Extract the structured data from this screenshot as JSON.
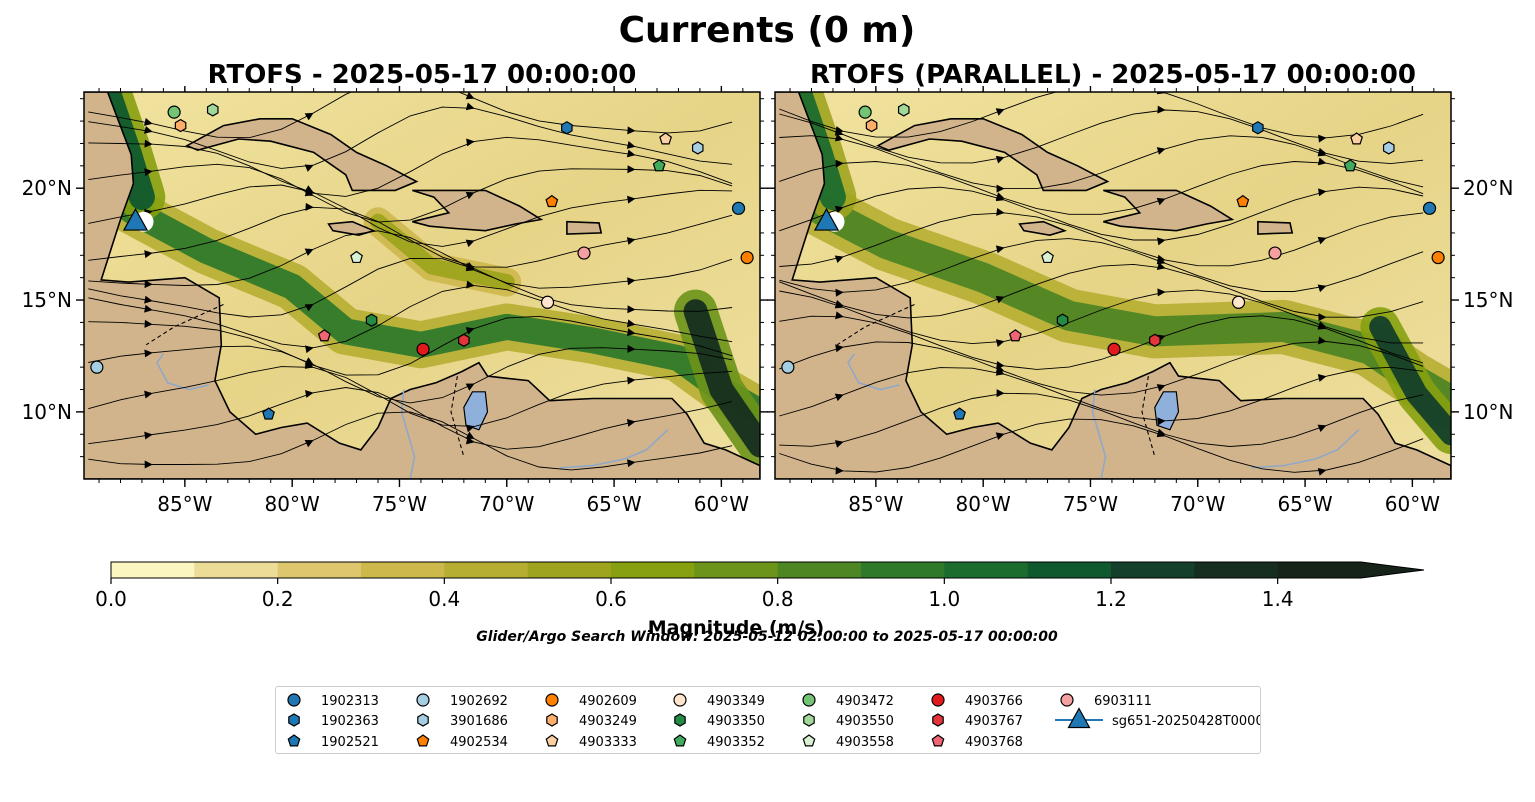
{
  "suptitle": "Currents (0 m)",
  "colors": {
    "land": "#d2b48c",
    "water_body": "#8fb0da",
    "river": "#8fa8c8",
    "streamline": "#000000"
  },
  "chart_data": [
    {
      "type": "heatmap",
      "title": "RTOFS - 2025-05-17 00:00:00",
      "xlim": [
        -89.7,
        -58.2
      ],
      "ylim": [
        7.0,
        24.3
      ],
      "x_ticks": [
        -85,
        -80,
        -75,
        -70,
        -65,
        -60
      ],
      "x_ticklabels": [
        "85°W",
        "80°W",
        "75°W",
        "70°W",
        "65°W",
        "60°W"
      ],
      "y_ticks": [
        10,
        15,
        20
      ],
      "y_ticklabels": [
        "10°N",
        "15°N",
        "20°N"
      ],
      "y_ticklabels_side": "left",
      "field": "current magnitude with streamlines"
    },
    {
      "type": "heatmap",
      "title": "RTOFS (PARALLEL) - 2025-05-17 00:00:00",
      "xlim": [
        -89.7,
        -58.2
      ],
      "ylim": [
        7.0,
        24.3
      ],
      "x_ticks": [
        -85,
        -80,
        -75,
        -70,
        -65,
        -60
      ],
      "x_ticklabels": [
        "85°W",
        "80°W",
        "75°W",
        "70°W",
        "65°W",
        "60°W"
      ],
      "y_ticks": [
        10,
        15,
        20
      ],
      "y_ticklabels": [
        "10°N",
        "15°N",
        "20°N"
      ],
      "y_ticklabels_side": "right",
      "field": "current magnitude with streamlines"
    }
  ],
  "colorbar": {
    "label": "Magnitude (m/s)",
    "min": 0.0,
    "max": 1.5,
    "step": 0.1,
    "extend": "max",
    "ticks": [
      0.0,
      0.2,
      0.4,
      0.6,
      0.8,
      1.0,
      1.2,
      1.4
    ],
    "ticklabels": [
      "0.0",
      "0.2",
      "0.4",
      "0.6",
      "0.8",
      "1.0",
      "1.2",
      "1.4"
    ],
    "colors": [
      "#fbf5bf",
      "#ebdc98",
      "#ddc66e",
      "#cdb84c",
      "#b6ae32",
      "#9ea41e",
      "#86a010",
      "#6c941a",
      "#4f8624",
      "#2f7a2a",
      "#1c6c2e",
      "#10582e",
      "#143f2a",
      "#162e20",
      "#162318"
    ]
  },
  "search_window_text": "Glider/Argo Search Window: 2025-05-12 02:00:00 to 2025-05-17 00:00:00",
  "legend": {
    "placement": "bottom-center",
    "entries": [
      {
        "label": "1902313",
        "marker": "circle",
        "color": "#1f78b4"
      },
      {
        "label": "1902363",
        "marker": "hexagon",
        "color": "#1f78b4"
      },
      {
        "label": "1902521",
        "marker": "pentagon",
        "color": "#1f78b4"
      },
      {
        "label": "1902692",
        "marker": "circle",
        "color": "#a6cee3"
      },
      {
        "label": "3901686",
        "marker": "hexagon",
        "color": "#a6cee3"
      },
      {
        "label": "4902534",
        "marker": "pentagon",
        "color": "#ff7f00"
      },
      {
        "label": "4902609",
        "marker": "circle",
        "color": "#ff7f00"
      },
      {
        "label": "4903249",
        "marker": "hexagon",
        "color": "#fdae6b"
      },
      {
        "label": "4903333",
        "marker": "pentagon",
        "color": "#fdd0a2"
      },
      {
        "label": "4903349",
        "marker": "circle",
        "color": "#fee6ce"
      },
      {
        "label": "4903350",
        "marker": "hexagon",
        "color": "#238b45"
      },
      {
        "label": "4903352",
        "marker": "pentagon",
        "color": "#41ab5d"
      },
      {
        "label": "4903472",
        "marker": "circle",
        "color": "#74c476"
      },
      {
        "label": "4903550",
        "marker": "hexagon",
        "color": "#a1d99b"
      },
      {
        "label": "4903558",
        "marker": "pentagon",
        "color": "#d9f0d3"
      },
      {
        "label": "4903766",
        "marker": "circle",
        "color": "#e31a1c"
      },
      {
        "label": "4903767",
        "marker": "hexagon",
        "color": "#e3353a"
      },
      {
        "label": "4903768",
        "marker": "pentagon",
        "color": "#f06474"
      },
      {
        "label": "6903111",
        "marker": "circle",
        "color": "#f4a0a0"
      },
      {
        "label": "sg651-20250428T0000",
        "marker": "triangle",
        "color": "#1f78b4"
      }
    ]
  },
  "markers": [
    {
      "id": "1902313",
      "lon": -59.2,
      "lat": 19.1
    },
    {
      "id": "1902363",
      "lon": -67.2,
      "lat": 22.7
    },
    {
      "id": "1902521",
      "lon": -81.1,
      "lat": 9.9
    },
    {
      "id": "1902692",
      "lon": -89.1,
      "lat": 12.0
    },
    {
      "id": "3901686",
      "lon": -61.1,
      "lat": 21.8
    },
    {
      "id": "4902534",
      "lon": -67.9,
      "lat": 19.4
    },
    {
      "id": "4902609",
      "lon": -58.8,
      "lat": 16.9
    },
    {
      "id": "4903249",
      "lon": -85.2,
      "lat": 22.8
    },
    {
      "id": "4903333",
      "lon": -62.6,
      "lat": 22.2
    },
    {
      "id": "4903349",
      "lon": -68.1,
      "lat": 14.9
    },
    {
      "id": "4903350",
      "lon": -76.3,
      "lat": 14.1
    },
    {
      "id": "4903352",
      "lon": -62.9,
      "lat": 21.0
    },
    {
      "id": "4903472",
      "lon": -85.5,
      "lat": 23.4
    },
    {
      "id": "4903550",
      "lon": -83.7,
      "lat": 23.5
    },
    {
      "id": "4903558",
      "lon": -77.0,
      "lat": 16.9
    },
    {
      "id": "4903766",
      "lon": -73.9,
      "lat": 12.8
    },
    {
      "id": "4903767",
      "lon": -72.0,
      "lat": 13.2
    },
    {
      "id": "4903768",
      "lon": -78.5,
      "lat": 13.4
    },
    {
      "id": "6903111",
      "lon": -66.4,
      "lat": 17.1
    },
    {
      "id": "sg651-20250428T0000",
      "lon": -87.3,
      "lat": 18.5
    }
  ]
}
